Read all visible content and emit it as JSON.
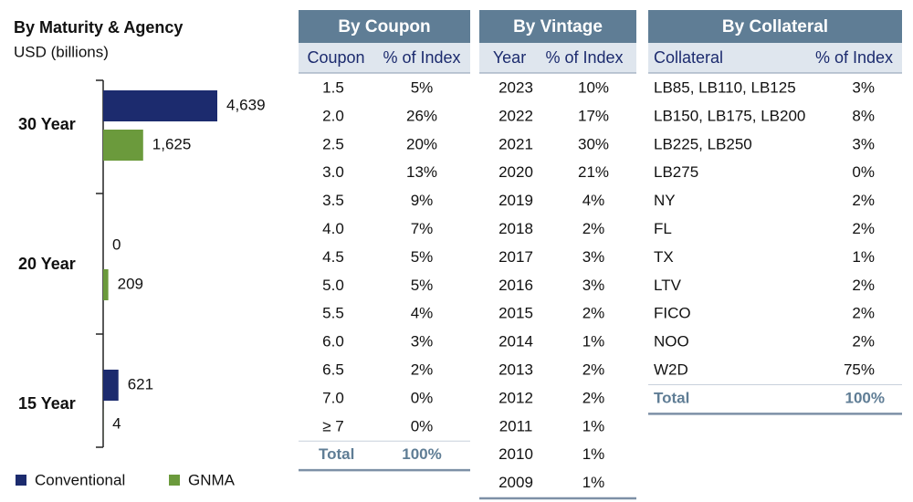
{
  "chart_data": {
    "type": "hbar",
    "title": "By Maturity & Agency",
    "subtitle": "USD (billions)",
    "categories": [
      "30 Year",
      "20 Year",
      "15 Year"
    ],
    "series": [
      {
        "name": "Conventional",
        "color": "#1c2b6e",
        "values": [
          4639,
          0,
          621
        ],
        "value_labels": [
          "4,639",
          "0",
          "621"
        ]
      },
      {
        "name": "GNMA",
        "color": "#6b9a3c",
        "values": [
          1625,
          209,
          4
        ],
        "value_labels": [
          "1,625",
          "209",
          "4"
        ]
      }
    ]
  },
  "tables": [
    {
      "title": "By Coupon",
      "columns": [
        "Coupon",
        "% of Index"
      ],
      "rows": [
        [
          "1.5",
          "5%"
        ],
        [
          "2.0",
          "26%"
        ],
        [
          "2.5",
          "20%"
        ],
        [
          "3.0",
          "13%"
        ],
        [
          "3.5",
          "9%"
        ],
        [
          "4.0",
          "7%"
        ],
        [
          "4.5",
          "5%"
        ],
        [
          "5.0",
          "5%"
        ],
        [
          "5.5",
          "4%"
        ],
        [
          "6.0",
          "3%"
        ],
        [
          "6.5",
          "2%"
        ],
        [
          "7.0",
          "0%"
        ],
        [
          "≥ 7",
          "0%"
        ]
      ],
      "total": [
        "Total",
        "100%"
      ]
    },
    {
      "title": "By Vintage",
      "columns": [
        "Year",
        "% of Index"
      ],
      "rows": [
        [
          "2023",
          "10%"
        ],
        [
          "2022",
          "17%"
        ],
        [
          "2021",
          "30%"
        ],
        [
          "2020",
          "21%"
        ],
        [
          "2019",
          "4%"
        ],
        [
          "2018",
          "2%"
        ],
        [
          "2017",
          "3%"
        ],
        [
          "2016",
          "3%"
        ],
        [
          "2015",
          "2%"
        ],
        [
          "2014",
          "1%"
        ],
        [
          "2013",
          "2%"
        ],
        [
          "2012",
          "2%"
        ],
        [
          "2011",
          "1%"
        ],
        [
          "2010",
          "1%"
        ],
        [
          "2009",
          "1%"
        ]
      ]
    },
    {
      "title": "By Collateral",
      "columns": [
        "Collateral",
        "% of Index"
      ],
      "rows": [
        [
          "LB85, LB110, LB125",
          "3%"
        ],
        [
          "LB150, LB175, LB200",
          "8%"
        ],
        [
          "LB225, LB250",
          "3%"
        ],
        [
          "LB275",
          "0%"
        ],
        [
          "NY",
          "2%"
        ],
        [
          "FL",
          "2%"
        ],
        [
          "TX",
          "1%"
        ],
        [
          "LTV",
          "2%"
        ],
        [
          "FICO",
          "2%"
        ],
        [
          "NOO",
          "2%"
        ],
        [
          "W2D",
          "75%"
        ]
      ],
      "total": [
        "Total",
        "100%"
      ]
    }
  ]
}
